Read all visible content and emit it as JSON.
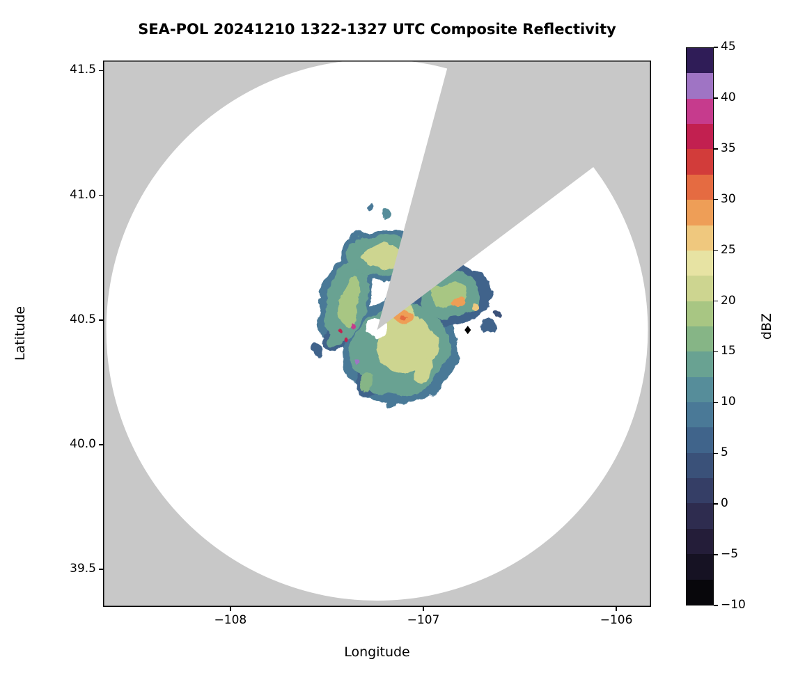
{
  "chart_data": {
    "type": "heatmap",
    "title": "SEA-POL 20241210 1322-1327 UTC Composite Reflectivity",
    "xlabel": "Longitude",
    "ylabel": "Latitude",
    "xlim": [
      -108.66,
      -105.82
    ],
    "ylim": [
      39.35,
      41.54
    ],
    "grid": false,
    "x_ticks": {
      "values": [
        -108,
        -107,
        -106
      ],
      "labels": [
        "−108",
        "−107",
        "−106"
      ]
    },
    "y_ticks": {
      "values": [
        41.5,
        41.0,
        40.5,
        40.0,
        39.5
      ],
      "labels": [
        "41.5",
        "41.0",
        "40.5",
        "40.0",
        "39.5"
      ]
    },
    "background_color": "#c8c8c8",
    "coverage_color": "#ffffff",
    "colorbar": {
      "label": "dBZ",
      "min": -10,
      "max": 45,
      "tick_step": 5,
      "step": 2.5,
      "tick_labels": [
        "45",
        "40",
        "35",
        "30",
        "25",
        "20",
        "15",
        "10",
        "5",
        "0",
        "−5",
        "−10"
      ],
      "colors": [
        "#08070b",
        "#161223",
        "#241d39",
        "#2e2c4f",
        "#353e66",
        "#3a5179",
        "#40648b",
        "#4a7997",
        "#568d9a",
        "#69a292",
        "#86b586",
        "#a8c683",
        "#cdd590",
        "#e7e3a3",
        "#efc87e",
        "#ee9e57",
        "#e56b41",
        "#d23c3a",
        "#c22050",
        "#c63b8d",
        "#9f74c4",
        "#2f1c57"
      ]
    },
    "radar": {
      "center_lon": -107.24,
      "center_lat": 40.46,
      "range_deg_lat": 1.085,
      "blocked_sector_deg": [
        15,
        53
      ]
    },
    "marker": {
      "lon": -106.77,
      "lat": 40.46,
      "shape": "diamond",
      "color": "#000000"
    },
    "clear_center": {
      "lon": -107.24,
      "lat": 40.47,
      "rx": 0.055,
      "ry": 0.04
    },
    "echoes": [
      {
        "lon": -107.12,
        "lat": 40.38,
        "rx": 0.3,
        "ry": 0.215,
        "rot": -20,
        "dbz": 8
      },
      {
        "lon": -107.41,
        "lat": 40.57,
        "rx": 0.13,
        "ry": 0.18,
        "rot": 15,
        "dbz": 8
      },
      {
        "lon": -107.23,
        "lat": 40.76,
        "rx": 0.2,
        "ry": 0.105,
        "rot": -8,
        "dbz": 8
      },
      {
        "lon": -106.85,
        "lat": 40.6,
        "rx": 0.21,
        "ry": 0.12,
        "rot": -5,
        "dbz": 6
      },
      {
        "lon": -106.97,
        "lat": 40.67,
        "rx": 0.07,
        "ry": 0.055,
        "rot": 0,
        "dbz": 7
      },
      {
        "lon": -106.99,
        "lat": 40.54,
        "rx": 0.05,
        "ry": 0.04,
        "rot": 0,
        "dbz": 5
      },
      {
        "lon": -107.46,
        "lat": 40.42,
        "rx": 0.065,
        "ry": 0.05,
        "rot": 0,
        "dbz": 6
      },
      {
        "lon": -107.3,
        "lat": 40.25,
        "rx": 0.06,
        "ry": 0.05,
        "rot": -30,
        "dbz": 6
      },
      {
        "lon": -107.55,
        "lat": 40.37,
        "rx": 0.035,
        "ry": 0.03,
        "rot": 0,
        "dbz": 7
      },
      {
        "lon": -107.17,
        "lat": 40.17,
        "rx": 0.03,
        "ry": 0.025,
        "rot": 0,
        "dbz": 8
      },
      {
        "lon": -106.99,
        "lat": 40.22,
        "rx": 0.025,
        "ry": 0.02,
        "rot": 0,
        "dbz": 9
      },
      {
        "lon": -107.28,
        "lat": 40.95,
        "rx": 0.02,
        "ry": 0.015,
        "rot": 0,
        "dbz": 8
      },
      {
        "lon": -107.19,
        "lat": 40.93,
        "rx": 0.015,
        "ry": 0.015,
        "rot": 0,
        "dbz": 12
      },
      {
        "lon": -106.66,
        "lat": 40.47,
        "rx": 0.04,
        "ry": 0.03,
        "rot": 0,
        "dbz": 6
      },
      {
        "lon": -106.62,
        "lat": 40.53,
        "rx": 0.02,
        "ry": 0.015,
        "rot": 0,
        "dbz": 4
      },
      {
        "lon": -107.12,
        "lat": 40.38,
        "rx": 0.26,
        "ry": 0.18,
        "rot": -20,
        "dbz": 14
      },
      {
        "lon": -107.4,
        "lat": 40.57,
        "rx": 0.105,
        "ry": 0.155,
        "rot": 15,
        "dbz": 14
      },
      {
        "lon": -107.23,
        "lat": 40.76,
        "rx": 0.165,
        "ry": 0.085,
        "rot": -8,
        "dbz": 14
      },
      {
        "lon": -106.86,
        "lat": 40.6,
        "rx": 0.17,
        "ry": 0.09,
        "rot": -5,
        "dbz": 13
      },
      {
        "lon": -107.46,
        "lat": 40.42,
        "rx": 0.042,
        "ry": 0.032,
        "rot": 0,
        "dbz": 14
      },
      {
        "lon": -107.3,
        "lat": 40.25,
        "rx": 0.04,
        "ry": 0.032,
        "rot": -30,
        "dbz": 15
      },
      {
        "lon": -107.09,
        "lat": 40.4,
        "rx": 0.16,
        "ry": 0.115,
        "rot": -18,
        "dbz": 20
      },
      {
        "lon": -107.13,
        "lat": 40.52,
        "rx": 0.07,
        "ry": 0.05,
        "rot": 0,
        "dbz": 21
      },
      {
        "lon": -107.38,
        "lat": 40.58,
        "rx": 0.05,
        "ry": 0.1,
        "rot": 12,
        "dbz": 19
      },
      {
        "lon": -107.22,
        "lat": 40.75,
        "rx": 0.1,
        "ry": 0.05,
        "rot": -8,
        "dbz": 20
      },
      {
        "lon": -106.87,
        "lat": 40.6,
        "rx": 0.09,
        "ry": 0.05,
        "rot": 0,
        "dbz": 19
      },
      {
        "lon": -107.0,
        "lat": 40.3,
        "rx": 0.06,
        "ry": 0.04,
        "rot": -20,
        "dbz": 20
      },
      {
        "lon": -107.1,
        "lat": 40.51,
        "rx": 0.035,
        "ry": 0.028,
        "rot": 0,
        "dbz": 28
      },
      {
        "lon": -106.82,
        "lat": 40.57,
        "rx": 0.028,
        "ry": 0.022,
        "rot": 0,
        "dbz": 28
      },
      {
        "lon": -106.74,
        "lat": 40.55,
        "rx": 0.018,
        "ry": 0.015,
        "rot": 0,
        "dbz": 26
      },
      {
        "lon": -107.1,
        "lat": 40.51,
        "rx": 0.012,
        "ry": 0.01,
        "rot": 0,
        "dbz": 31
      },
      {
        "lon": -107.37,
        "lat": 40.49,
        "rx": 0.012,
        "ry": 0.01,
        "rot": 0,
        "dbz": 38
      },
      {
        "lon": -107.39,
        "lat": 40.43,
        "rx": 0.012,
        "ry": 0.012,
        "rot": 0,
        "dbz": 37
      },
      {
        "lon": -107.34,
        "lat": 40.34,
        "rx": 0.01,
        "ry": 0.01,
        "rot": 0,
        "dbz": 40
      },
      {
        "lon": -107.44,
        "lat": 40.46,
        "rx": 0.01,
        "ry": 0.009,
        "rot": 0,
        "dbz": 36
      }
    ]
  }
}
